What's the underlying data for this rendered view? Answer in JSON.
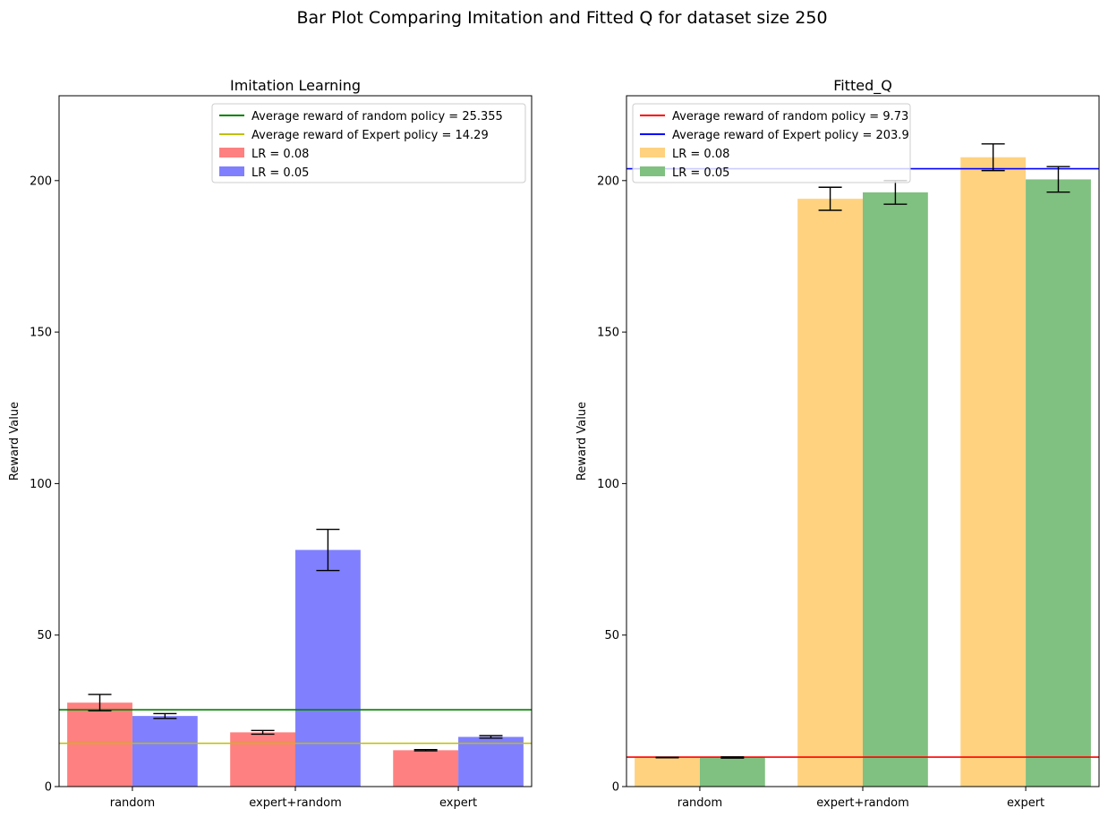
{
  "figure_title": "Bar Plot Comparing Imitation and Fitted Q for dataset size 250",
  "chart_data": [
    {
      "type": "bar",
      "title": "Imitation Learning",
      "xlabel": "",
      "ylabel": "Reward Value",
      "categories": [
        "random",
        "expert+random",
        "expert"
      ],
      "ylim": [
        0,
        228
      ],
      "yticks": [
        0,
        50,
        100,
        150,
        200
      ],
      "grid": false,
      "legend_position": "top-right",
      "series": [
        {
          "name": "LR = 0.08",
          "color": "#ff8080",
          "values": [
            27.7,
            17.9,
            12.0
          ],
          "errors": [
            2.7,
            0.6,
            0.2
          ]
        },
        {
          "name": "LR = 0.05",
          "color": "#8080ff",
          "values": [
            23.3,
            78.1,
            16.4
          ],
          "errors": [
            0.8,
            6.8,
            0.4
          ]
        }
      ],
      "hlines": [
        {
          "label": "Average reward of random policy = 25.355",
          "value": 25.355,
          "color": "#008000"
        },
        {
          "label": "Average reward of Expert policy = 14.29",
          "value": 14.29,
          "color": "#bfbf00"
        }
      ]
    },
    {
      "type": "bar",
      "title": "Fitted_Q",
      "xlabel": "",
      "ylabel": "Reward Value",
      "categories": [
        "random",
        "expert+random",
        "expert"
      ],
      "ylim": [
        0,
        228
      ],
      "yticks": [
        0,
        50,
        100,
        150,
        200
      ],
      "grid": false,
      "legend_position": "top-left",
      "series": [
        {
          "name": "LR = 0.08",
          "color": "#ffd280",
          "values": [
            9.6,
            194.0,
            207.7
          ],
          "errors": [
            0.1,
            3.8,
            4.4
          ]
        },
        {
          "name": "LR = 0.05",
          "color": "#80c080",
          "values": [
            9.6,
            196.1,
            200.4
          ],
          "errors": [
            0.2,
            3.9,
            4.2
          ]
        }
      ],
      "hlines": [
        {
          "label": "Average reward of random policy = 9.73",
          "value": 9.73,
          "color": "#ff0000"
        },
        {
          "label": "Average reward of Expert policy = 203.9",
          "value": 203.9,
          "color": "#0000ff"
        }
      ]
    }
  ]
}
